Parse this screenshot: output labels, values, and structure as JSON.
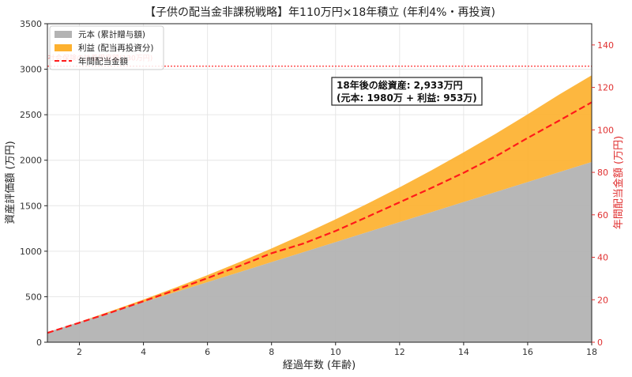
{
  "chart_data": {
    "type": "area",
    "title": "【子供の配当金非課税戦略】年110万円×18年積立 (年利4%・再投資)",
    "xlabel": "経過年数 (年齢)",
    "ylabel": "資産評価額 (万円)",
    "ylabel_right": "年間配当金額 (万円)",
    "xlim": [
      1,
      18
    ],
    "ylim": [
      0,
      3500
    ],
    "ylim_right": [
      0,
      150
    ],
    "x_ticks": [
      2,
      4,
      6,
      8,
      10,
      12,
      14,
      16,
      18
    ],
    "y_ticks": [
      0,
      500,
      1000,
      1500,
      2000,
      2500,
      3000,
      3500
    ],
    "y_ticks_right": [
      0,
      20,
      40,
      60,
      80,
      100,
      120,
      140
    ],
    "grid": true,
    "legend_position": "top-left",
    "x": [
      1,
      2,
      3,
      4,
      5,
      6,
      7,
      8,
      9,
      10,
      11,
      12,
      13,
      14,
      15,
      16,
      17,
      18
    ],
    "series": [
      {
        "name": "元本 (累計贈与額)",
        "kind": "area",
        "axis": "left",
        "color": "#b3b3b3",
        "values": [
          110,
          220,
          330,
          440,
          550,
          660,
          770,
          880,
          990,
          1100,
          1210,
          1320,
          1430,
          1540,
          1650,
          1760,
          1870,
          1980
        ]
      },
      {
        "name": "利益 (配当再投資分)",
        "kind": "stacked-area",
        "axis": "left",
        "color": "#fdb12f",
        "values": [
          0,
          4,
          14,
          29,
          50,
          77,
          110,
          150,
          197,
          251,
          313,
          382,
          460,
          546,
          641,
          745,
          855,
          953
        ]
      },
      {
        "name": "年間配当金額",
        "kind": "line",
        "axis": "right",
        "color": "#ff1a1a",
        "values": [
          4.4,
          9.2,
          14.1,
          19.3,
          24.6,
          30.2,
          35.9,
          41.9,
          46.5,
          52.4,
          59.1,
          65.9,
          72.7,
          79.8,
          87.5,
          96.2,
          104.5,
          113.0
        ]
      }
    ],
    "reference_line": {
      "axis": "right",
      "value": 130,
      "label": "社会保険の扶養限度額(130万円)",
      "color": "#ff3030"
    },
    "annotation": {
      "line1": "18年後の総資産: 2,933万円",
      "line2": "(元本: 1980万 + 利益: 953万)"
    }
  }
}
